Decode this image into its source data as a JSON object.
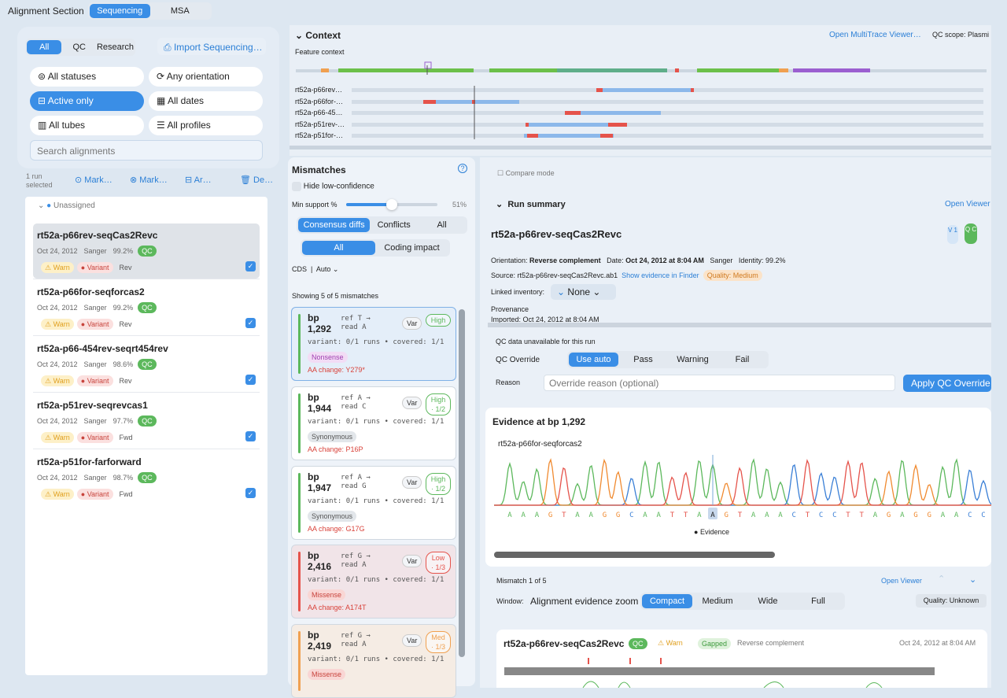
{
  "header": {
    "title": "Alignment Section",
    "tabs": [
      "Sequencing",
      "MSA"
    ]
  },
  "sidebar": {
    "tabs": [
      "All",
      "QC",
      "Research"
    ],
    "import": "Import Sequencing…",
    "filters": [
      "All statuses",
      "Any orientation",
      "Active only",
      "All dates",
      "All tubes",
      "All profiles"
    ],
    "search": "Search alignments",
    "selection": "1 run selected",
    "actions": [
      "Mark…",
      "Mark…",
      "Ar…",
      "De…"
    ],
    "group": "Unassigned",
    "runs": [
      {
        "name": "rt52a-p66rev-seqCas2Revc",
        "date": "Oct 24, 2012",
        "platform": "Sanger",
        "identity": "99.2%",
        "qc": "QC",
        "warn": "Warn",
        "variant": "Variant",
        "orientation": "Rev"
      },
      {
        "name": "rt52a-p66for-seqforcas2",
        "date": "Oct 24, 2012",
        "platform": "Sanger",
        "identity": "99.2%",
        "qc": "QC",
        "warn": "Warn",
        "variant": "Variant",
        "orientation": "Rev"
      },
      {
        "name": "rt52a-p66-454rev-seqrt454rev",
        "date": "Oct 24, 2012",
        "platform": "Sanger",
        "identity": "98.6%",
        "qc": "QC",
        "warn": "Warn",
        "variant": "Variant",
        "orientation": "Rev"
      },
      {
        "name": "rt52a-p51rev-seqrevcas1",
        "date": "Oct 24, 2012",
        "platform": "Sanger",
        "identity": "97.7%",
        "qc": "QC",
        "warn": "Warn",
        "variant": "Variant",
        "orientation": "Fwd"
      },
      {
        "name": "rt52a-p51for-farforward",
        "date": "Oct 24, 2012",
        "platform": "Sanger",
        "identity": "98.7%",
        "qc": "QC",
        "warn": "Warn",
        "variant": "Variant",
        "orientation": "Fwd"
      }
    ]
  },
  "context": {
    "title": "Context",
    "open": "Open MultiTrace Viewer…",
    "scope": "QC scope: Plasmi",
    "feature_label": "Feature context",
    "tracks": [
      "rt52a-p66rev…",
      "rt52a-p66for-…",
      "rt52a-p66-45…",
      "rt52a-p51rev-…",
      "rt52a-p51for-…"
    ]
  },
  "mismatches": {
    "title": "Mismatches",
    "help": "?",
    "hide": "Hide low-confidence",
    "min_support_label": "Min support %",
    "min_support": "51%",
    "tabs": [
      "Consensus diffs",
      "Conflicts",
      "All"
    ],
    "subtabs": [
      "All",
      "Coding impact"
    ],
    "cds": "CDS",
    "cds_mode": "Auto",
    "showing": "Showing 5 of 5 mismatches",
    "cards": [
      {
        "unit": "bp",
        "position": "1,292",
        "ref": "ref T →",
        "read": "read A",
        "kind": "Var",
        "confidence": "High",
        "coverage": "variant: 0/1 runs • covered: 1/1",
        "effect": "Nonsense",
        "aa": "AA change: Y279*",
        "color": "#5cb85c"
      },
      {
        "unit": "bp",
        "position": "1,944",
        "ref": "ref A →",
        "read": "read C",
        "kind": "Var",
        "confidence": "High · 1/2",
        "coverage": "variant: 0/1 runs • covered: 1/1",
        "effect": "Synonymous",
        "aa": "AA change: P16P",
        "color": "#5cb85c"
      },
      {
        "unit": "bp",
        "position": "1,947",
        "ref": "ref A →",
        "read": "read G",
        "kind": "Var",
        "confidence": "High · 1/2",
        "coverage": "variant: 0/1 runs • covered: 1/1",
        "effect": "Synonymous",
        "aa": "AA change: G17G",
        "color": "#5cb85c"
      },
      {
        "unit": "bp",
        "position": "2,416",
        "ref": "ref G →",
        "read": "read A",
        "kind": "Var",
        "confidence": "Low · 1/3",
        "coverage": "variant: 0/1 runs • covered: 1/1",
        "effect": "Missense",
        "aa": "AA change: A174T",
        "color": "#e5534b"
      },
      {
        "unit": "bp",
        "position": "2,419",
        "ref": "ref G →",
        "read": "read A",
        "kind": "Var",
        "confidence": "Med · 1/3",
        "coverage": "variant: 0/1 runs • covered: 1/1",
        "effect": "Missense",
        "aa": "",
        "color": "#f0a050"
      }
    ]
  },
  "detail": {
    "compare": "Compare mode",
    "summary_title": "Run summary",
    "open_viewer": "Open Viewer",
    "run_name": "rt52a-p66rev-seqCas2Revc",
    "version": "V 1",
    "qc": "Q C",
    "orientation_label": "Orientation:",
    "orientation": "Reverse complement",
    "date_label": "Date:",
    "date": "Oct 24, 2012 at 8:04 AM",
    "platform": "Sanger",
    "identity_label": "Identity:",
    "identity": "99.2%",
    "source": "Source: rt52a-p66rev-seqCas2Revc.ab1",
    "finder": "Show evidence in Finder",
    "quality": "Quality: Medium",
    "inventory_label": "Linked inventory:",
    "inventory": "None",
    "provenance": "Provenance",
    "imported": "Imported: Oct 24, 2012 at 8:04 AM",
    "qc_note": "QC data unavailable for this run",
    "qc_override": "QC Override",
    "qc_options": [
      "Use auto",
      "Pass",
      "Warning",
      "Fail"
    ],
    "reason_label": "Reason",
    "reason_placeholder": "Override reason (optional)",
    "apply": "Apply QC Override"
  },
  "evidence": {
    "title": "Evidence at bp 1,292",
    "trace": "rt52a-p66for-seqforcas2",
    "sequence": [
      "A",
      "A",
      "A",
      "G",
      "T",
      "A",
      "A",
      "G",
      "G",
      "C",
      "A",
      "A",
      "T",
      "T",
      "A",
      "A",
      "G",
      "T",
      "A",
      "A",
      "A",
      "C",
      "T",
      "C",
      "C",
      "T",
      "T",
      "A",
      "G",
      "A",
      "G",
      "G",
      "A",
      "A",
      "C",
      "C"
    ],
    "legend": "Evidence"
  },
  "navigator": {
    "position": "Mismatch 1 of 5",
    "open_viewer": "Open Viewer",
    "window_label": "Window:",
    "window_name": "Alignment evidence zoom",
    "zooms": [
      "Compact",
      "Medium",
      "Wide",
      "Full"
    ],
    "quality": "Quality: Unknown"
  },
  "run_card": {
    "name": "rt52a-p66rev-seqCas2Revc",
    "qc": "QC",
    "warn": "Warn",
    "gapped": "Gapped",
    "orientation": "Reverse complement",
    "date": "Oct 24, 2012 at 8:04 AM"
  }
}
